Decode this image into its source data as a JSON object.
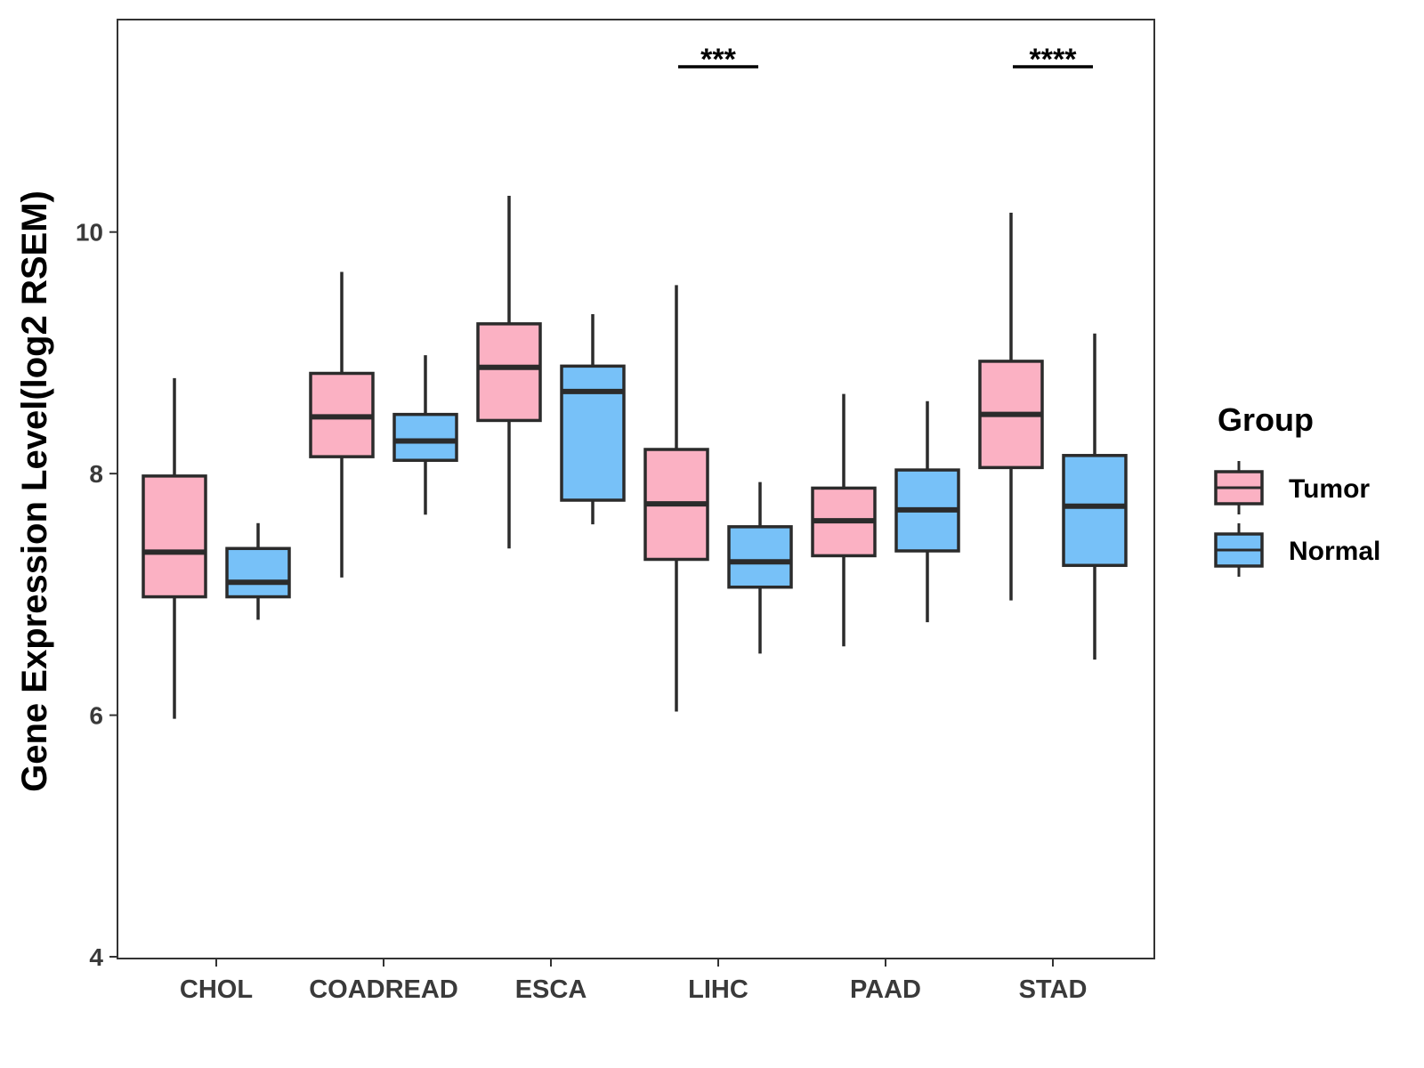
{
  "chart_data": {
    "type": "box",
    "ylabel": "Gene Expression Level(log2 RSEM)",
    "xlabel": "",
    "ylim": [
      4,
      11.7
    ],
    "yticks": [
      4,
      6,
      8,
      10
    ],
    "categories": [
      "CHOL",
      "COADREAD",
      "ESCA",
      "LIHC",
      "PAAD",
      "STAD"
    ],
    "legend": {
      "title": "Group",
      "position": "right",
      "entries": [
        {
          "name": "Tumor",
          "color": "#fbb1c3"
        },
        {
          "name": "Normal",
          "color": "#77c1f8"
        }
      ]
    },
    "series": [
      {
        "name": "Tumor",
        "color": "#fbb1c3",
        "boxes": [
          {
            "category": "CHOL",
            "min": 5.97,
            "q1": 6.98,
            "median": 7.35,
            "q3": 7.98,
            "max": 8.79
          },
          {
            "category": "COADREAD",
            "min": 7.14,
            "q1": 8.14,
            "median": 8.47,
            "q3": 8.83,
            "max": 9.67
          },
          {
            "category": "ESCA",
            "min": 7.38,
            "q1": 8.44,
            "median": 8.88,
            "q3": 9.24,
            "max": 10.3
          },
          {
            "category": "LIHC",
            "min": 6.03,
            "q1": 7.29,
            "median": 7.75,
            "q3": 8.2,
            "max": 9.56
          },
          {
            "category": "PAAD",
            "min": 6.57,
            "q1": 7.32,
            "median": 7.61,
            "q3": 7.88,
            "max": 8.66
          },
          {
            "category": "STAD",
            "min": 6.95,
            "q1": 8.05,
            "median": 8.49,
            "q3": 8.93,
            "max": 10.16
          }
        ]
      },
      {
        "name": "Normal",
        "color": "#77c1f8",
        "boxes": [
          {
            "category": "CHOL",
            "min": 6.79,
            "q1": 6.98,
            "median": 7.1,
            "q3": 7.38,
            "max": 7.59
          },
          {
            "category": "COADREAD",
            "min": 7.66,
            "q1": 8.11,
            "median": 8.27,
            "q3": 8.49,
            "max": 8.98
          },
          {
            "category": "ESCA",
            "min": 7.58,
            "q1": 7.78,
            "median": 8.68,
            "q3": 8.89,
            "max": 9.32
          },
          {
            "category": "LIHC",
            "min": 6.51,
            "q1": 7.06,
            "median": 7.27,
            "q3": 7.56,
            "max": 7.93
          },
          {
            "category": "PAAD",
            "min": 6.77,
            "q1": 7.36,
            "median": 7.7,
            "q3": 8.03,
            "max": 8.6
          },
          {
            "category": "STAD",
            "min": 6.46,
            "q1": 7.24,
            "median": 7.73,
            "q3": 8.15,
            "max": 9.16
          }
        ]
      }
    ],
    "annotations": [
      {
        "category": "LIHC",
        "text": "***"
      },
      {
        "category": "STAD",
        "text": "****"
      }
    ]
  }
}
